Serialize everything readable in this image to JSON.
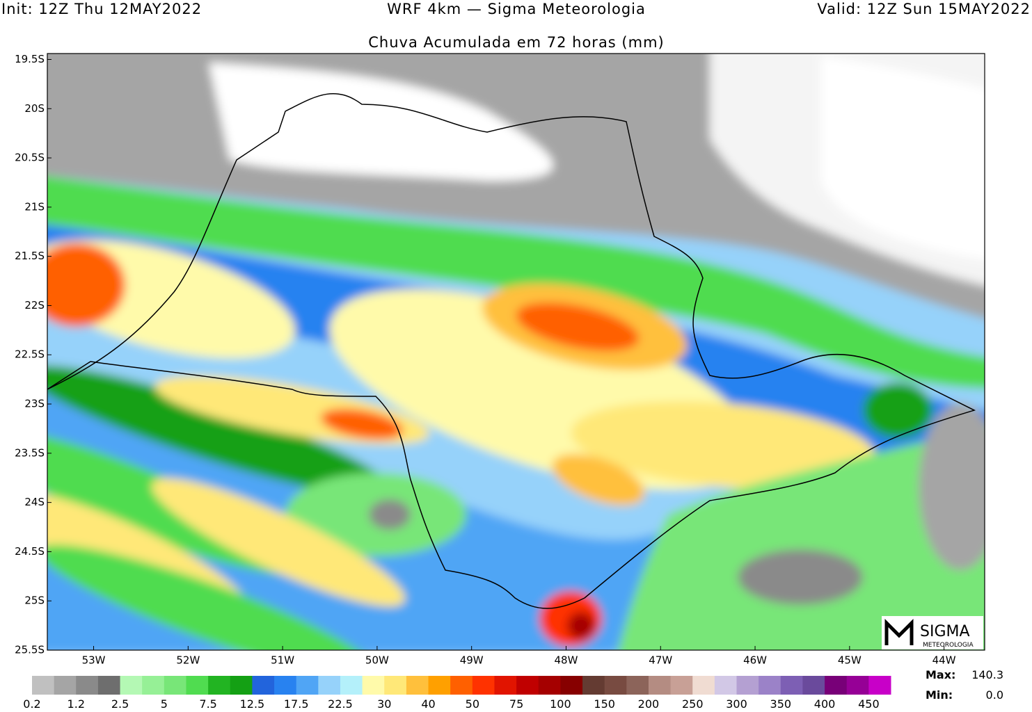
{
  "header": {
    "init": "Init: 12Z Thu 12MAY2022",
    "model": "WRF 4km — Sigma Meteorologia",
    "valid": "Valid: 12Z Sun 15MAY2022",
    "title": "Chuva Acumulada em 72 horas (mm)"
  },
  "map": {
    "xlim": [
      -53.49,
      -43.57
    ],
    "ylim": [
      -25.5,
      -19.44
    ],
    "xticks": [
      {
        "value": -53,
        "label": "53W"
      },
      {
        "value": -52,
        "label": "52W"
      },
      {
        "value": -51,
        "label": "51W"
      },
      {
        "value": -50,
        "label": "50W"
      },
      {
        "value": -49,
        "label": "49W"
      },
      {
        "value": -48,
        "label": "48W"
      },
      {
        "value": -47,
        "label": "47W"
      },
      {
        "value": -46,
        "label": "46W"
      },
      {
        "value": -45,
        "label": "45W"
      },
      {
        "value": -44,
        "label": "44W"
      }
    ],
    "yticks": [
      {
        "value": -19.5,
        "label": "19.5S"
      },
      {
        "value": -20,
        "label": "20S"
      },
      {
        "value": -20.5,
        "label": "20.5S"
      },
      {
        "value": -21,
        "label": "21S"
      },
      {
        "value": -21.5,
        "label": "21.5S"
      },
      {
        "value": -22,
        "label": "22S"
      },
      {
        "value": -22.5,
        "label": "22.5S"
      },
      {
        "value": -23,
        "label": "23S"
      },
      {
        "value": -23.5,
        "label": "23.5S"
      },
      {
        "value": -24,
        "label": "24S"
      },
      {
        "value": -24.5,
        "label": "24.5S"
      },
      {
        "value": -25,
        "label": "25S"
      },
      {
        "value": -25.5,
        "label": "25.5S"
      }
    ]
  },
  "colorbar": {
    "colors": [
      "#c0c0c0",
      "#a5a5a5",
      "#8a8a8a",
      "#6e6e6e",
      "#b4f8b4",
      "#96f096",
      "#78e678",
      "#50dc50",
      "#22b422",
      "#14a014",
      "#2264dc",
      "#2882f0",
      "#50a5f5",
      "#96d2fa",
      "#b4f0fa",
      "#fffaaa",
      "#ffe878",
      "#ffc03c",
      "#ffa000",
      "#ff6000",
      "#ff3200",
      "#e11400",
      "#c00000",
      "#a50000",
      "#870000",
      "#643b32",
      "#784b41",
      "#8c645a",
      "#b48c82",
      "#c8a096",
      "#f0dcd2",
      "#d2c8e6",
      "#b4a0d2",
      "#9b82c8",
      "#7d5fb4",
      "#6a4a9c",
      "#780078",
      "#960096",
      "#c800c8"
    ],
    "labels": [
      0.2,
      1.2,
      2.5,
      5,
      7.5,
      12.5,
      17.5,
      22.5,
      30,
      40,
      50,
      75,
      100,
      150,
      200,
      250,
      300,
      350,
      400,
      450
    ]
  },
  "stats": {
    "max_label": "Max:",
    "max": 140.3,
    "min_label": "Min:",
    "min": {
      "value": 0,
      "label": "0.0"
    }
  },
  "logo": {
    "name": "SIGMA",
    "sub": "METEOROLOGIA"
  }
}
